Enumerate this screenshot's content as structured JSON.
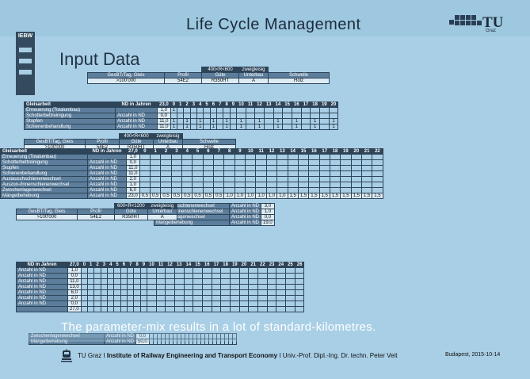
{
  "header": {
    "title": "Life Cycle Management"
  },
  "logo": {
    "mark": "TU",
    "sub": "Graz"
  },
  "side_label": "IEBW",
  "page_heading": "Input Data",
  "config": {
    "top_label": "400<R<600",
    "track": "zweigleisig",
    "cols": [
      "GesBT/Tag, Gleis",
      "Profil",
      "Güte",
      "Unterbau",
      "Schwelle"
    ],
    "values": [
      ">100'000",
      "54E2",
      "R350HT",
      "A",
      "Holz"
    ]
  },
  "config2": {
    "top_label": "600<R<1200",
    "track": "zweigleisig",
    "cols": [
      "GesBT/Tag, Gleis",
      "Profil",
      "Güte",
      "Unterbau",
      "Schwelle"
    ],
    "values": [
      ">100'000",
      "54E2",
      "R350HT",
      "A",
      "Holz"
    ]
  },
  "main_table": {
    "head": [
      "Gleisarbeit",
      "ND in Jahren",
      "23,0",
      "0",
      "1",
      "2",
      "3",
      "4",
      "5",
      "6",
      "7",
      "8",
      "9",
      "10",
      "11",
      "12",
      "13",
      "14",
      "15",
      "16",
      "17",
      "18",
      "19",
      "20"
    ],
    "rows": [
      {
        "label": "Erneuerung (Totalumbau)",
        "unit": "",
        "nd": "1,0",
        "vals": [
          "1",
          "",
          "",
          "",
          "",
          "",
          "",
          "",
          "",
          "",
          "",
          "",
          "",
          "",
          "",
          "",
          "",
          "",
          "",
          "",
          ""
        ]
      },
      {
        "label": "Schotterbettreinigung",
        "unit": "Anzahl in ND",
        "nd": "0,0",
        "vals": [
          "",
          "",
          "",
          "",
          "",
          "",
          "",
          "",
          "",
          "",
          "",
          "",
          "",
          "",
          "",
          "",
          "",
          "",
          "",
          "",
          ""
        ]
      },
      {
        "label": "Stopfen",
        "unit": "Anzahl in ND",
        "nd": "11,0",
        "vals": [
          "1",
          "",
          "1",
          "",
          "1",
          "",
          "1",
          "",
          "1",
          "",
          "1",
          "",
          "1",
          "",
          "1",
          "",
          "1",
          "",
          "1",
          "",
          "1"
        ]
      },
      {
        "label": "Schienenbehandlung",
        "unit": "Anzahl in ND",
        "nd": "11,0",
        "vals": [
          "1",
          "",
          "1",
          "",
          "1",
          "",
          "1",
          "",
          "1",
          "",
          "1",
          "",
          "1",
          "",
          "1",
          "",
          "1",
          "",
          "1",
          "",
          "1"
        ]
      }
    ]
  },
  "second_table": {
    "head": [
      "Gleisarbeit",
      "ND in Jahren",
      "27,0",
      "0",
      "1",
      "2",
      "3",
      "4",
      "5",
      "6",
      "7",
      "8",
      "9",
      "10",
      "11",
      "12",
      "13",
      "14",
      "15",
      "16",
      "17",
      "18",
      "19",
      "20",
      "21",
      "22"
    ],
    "rows": [
      {
        "label": "Erneuerung (Totalumbau)",
        "unit": "",
        "nd": "1,0"
      },
      {
        "label": "Schotterbettreinigung",
        "unit": "Anzahl in ND",
        "nd": "0,0"
      },
      {
        "label": "Stopfen",
        "unit": "Anzahl in ND",
        "nd": "11,0"
      },
      {
        "label": "Schienenbehandlung",
        "unit": "Anzahl in ND",
        "nd": "11,0"
      },
      {
        "label": "Austauschschienenwechsel",
        "unit": "Anzahl in ND",
        "nd": "2,0"
      },
      {
        "label": "Auszon-/Innenschienenwechsel",
        "unit": "Anzahl in ND",
        "nd": "1,0"
      },
      {
        "label": "Zwischenlagenwechsel",
        "unit": "Anzahl in ND",
        "nd": "6,0"
      },
      {
        "label": "Mängelbehebung",
        "unit": "Anzahl in ND",
        "nd": "23,0"
      }
    ],
    "last_row": [
      "0,5",
      "0,5",
      "0,5",
      "0,5",
      "0,5",
      "0,5",
      "0,5",
      "0,5",
      "1,0",
      "1,0",
      "1,0",
      "1,0",
      "1,0",
      "1,0",
      "1,5",
      "1,5",
      "1,5",
      "1,5",
      "1,5",
      "1,5",
      "1,5",
      "1,5",
      "1,5"
    ]
  },
  "third_table": {
    "head": [
      "ND in Jahren",
      "27,0",
      "0",
      "1",
      "2",
      "3",
      "4",
      "5",
      "6",
      "7",
      "8",
      "9",
      "10",
      "11",
      "12",
      "13",
      "14",
      "15",
      "16",
      "17",
      "18",
      "19",
      "20",
      "21",
      "22",
      "23",
      "24",
      "25",
      "26"
    ],
    "units": [
      "Anzahl in ND",
      "Anzahl in ND",
      "Anzahl in ND",
      "Anzahl in ND",
      "Anzahl in ND",
      "Anzahl in ND",
      "Anzahl in ND"
    ],
    "nd": [
      "1,0",
      "0,0",
      "11,0",
      "13,0",
      "6,0",
      "2,0",
      "0,0",
      "27,0"
    ]
  },
  "overlay_rows": [
    {
      "label": "Austauschschienenwechsel",
      "unit": "Anzahl in ND",
      "nd": "3,0"
    },
    {
      "label": "Auszon-/Innenschienenwechsel",
      "unit": "Anzahl in ND",
      "nd": "1,0"
    },
    {
      "label": "Zwischenlagenwechsel",
      "unit": "Anzahl in ND",
      "nd": "0,0"
    },
    {
      "label": "Mängelbehebung",
      "unit": "Anzahl in ND",
      "nd": "19,0"
    }
  ],
  "bottom_rows": [
    {
      "label": "Zwischenlagenwechsel",
      "unit": "Anzahl in ND",
      "nd": "0,0"
    },
    {
      "label": "Mängelbehebung",
      "unit": "Anzahl in ND",
      "nd": "50,0"
    }
  ],
  "caption": "The parameter-mix results in a lot of standard-kilometres.",
  "footer": {
    "org": "TU Graz I ",
    "institute": "Institute of Railway Engineering and Transport Economy",
    "person": " I Univ.-Prof. Dipl.-Ing. Dr. techn. Peter Veit",
    "date": "Budapest, 2015-10-14"
  },
  "colors": {
    "background": "#a9cfe6",
    "header_band": "#2d4459",
    "label_band": "#5c7e9c",
    "value_cell": "#dcebf4"
  }
}
